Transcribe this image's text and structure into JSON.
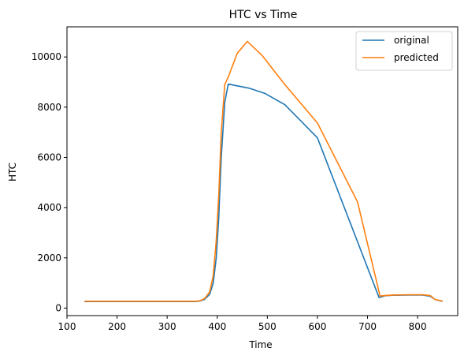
{
  "chart_data": {
    "type": "line",
    "title": "HTC vs Time",
    "xlabel": "Time",
    "ylabel": "HTC",
    "xlim": [
      100,
      880
    ],
    "ylim": [
      -300,
      11200
    ],
    "xticks": [
      100,
      200,
      300,
      400,
      500,
      600,
      700,
      800
    ],
    "yticks": [
      0,
      2000,
      4000,
      6000,
      8000,
      10000
    ],
    "grid": false,
    "legend_position": "top-right",
    "series": [
      {
        "name": "original",
        "color": "#1f77b4",
        "x": [
          135,
          200,
          300,
          355,
          365,
          375,
          385,
          392,
          398,
          403,
          408,
          415,
          422,
          440,
          465,
          495,
          535,
          600,
          723,
          735,
          750,
          780,
          810,
          825,
          835,
          845,
          850
        ],
        "y": [
          260,
          260,
          260,
          260,
          280,
          350,
          550,
          1000,
          2000,
          3600,
          6000,
          8200,
          8920,
          8850,
          8750,
          8550,
          8100,
          6780,
          420,
          490,
          510,
          520,
          520,
          470,
          340,
          290,
          270
        ]
      },
      {
        "name": "predicted",
        "color": "#ff7f0e",
        "x": [
          135,
          200,
          300,
          355,
          365,
          375,
          385,
          392,
          398,
          403,
          408,
          415,
          422,
          440,
          460,
          490,
          535,
          600,
          680,
          725,
          735,
          750,
          780,
          810,
          825,
          835,
          845,
          850
        ],
        "y": [
          270,
          270,
          270,
          270,
          290,
          380,
          650,
          1300,
          2700,
          4500,
          7000,
          8900,
          9200,
          10150,
          10620,
          10050,
          8900,
          7370,
          4230,
          480,
          500,
          520,
          530,
          530,
          500,
          340,
          300,
          280
        ]
      }
    ]
  }
}
